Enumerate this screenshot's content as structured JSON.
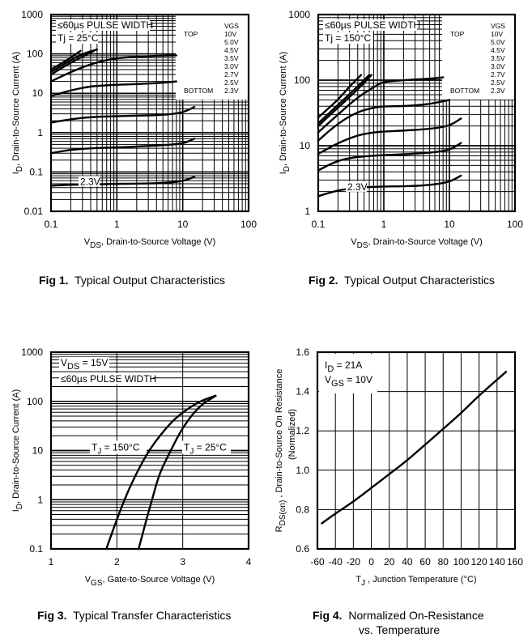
{
  "chart_data": [
    {
      "id": "fig1",
      "type": "line",
      "caption_bold": "Fig 1.",
      "caption": "Typical Output Characteristics",
      "xlabel_main": "V",
      "xlabel_sub": "DS",
      "xlabel_rest": ", Drain-to-Source Voltage (V)",
      "ylabel_main": "I",
      "ylabel_sub": "D",
      "ylabel_rest": ", Drain-to-Source Current (A)",
      "xscale": "log",
      "yscale": "log",
      "xlim": [
        0.1,
        100
      ],
      "ylim": [
        0.01,
        1000
      ],
      "xticks": [
        "0.1",
        "1",
        "10",
        "100"
      ],
      "yticks": [
        "0.01",
        "0.1",
        "1",
        "10",
        "100",
        "1000"
      ],
      "grid": true,
      "annotations": [
        "≤60µs PULSE WIDTH",
        "Tj = 25°C"
      ],
      "curve_label": "2.3V",
      "legend": {
        "placement": "top-right",
        "header": "VGS",
        "top_label": "TOP",
        "bottom_label": "BOTTOM",
        "entries": [
          "10V",
          "5.0V",
          "4.5V",
          "3.5V",
          "3.0V",
          "2.7V",
          "2.5V",
          "2.3V"
        ]
      },
      "series": [
        {
          "name": "10V",
          "x": [
            0.1,
            0.15,
            0.2,
            0.28
          ],
          "y": [
            40,
            60,
            80,
            120
          ]
        },
        {
          "name": "5.0V",
          "x": [
            0.1,
            0.15,
            0.2,
            0.3,
            0.5
          ],
          "y": [
            35,
            52,
            70,
            100,
            130
          ]
        },
        {
          "name": "4.5V",
          "x": [
            0.1,
            0.15,
            0.2,
            0.3,
            0.45
          ],
          "y": [
            30,
            45,
            60,
            85,
            120
          ]
        },
        {
          "name": "3.5V",
          "x": [
            0.1,
            0.2,
            0.4,
            0.7,
            1,
            2,
            5,
            8
          ],
          "y": [
            20,
            35,
            55,
            70,
            78,
            85,
            90,
            92
          ]
        },
        {
          "name": "3.0V",
          "x": [
            0.1,
            0.2,
            0.4,
            0.7,
            1,
            2,
            5,
            8
          ],
          "y": [
            8.5,
            12,
            15,
            16,
            16.5,
            17,
            18.5,
            20
          ]
        },
        {
          "name": "2.7V",
          "x": [
            0.1,
            0.2,
            0.4,
            1,
            2,
            5,
            10,
            15
          ],
          "y": [
            1.8,
            2.2,
            2.5,
            2.6,
            2.7,
            2.8,
            3.2,
            4.5
          ]
        },
        {
          "name": "2.5V",
          "x": [
            0.1,
            0.2,
            0.4,
            1,
            2,
            5,
            10,
            15
          ],
          "y": [
            0.3,
            0.37,
            0.4,
            0.42,
            0.44,
            0.48,
            0.52,
            0.7
          ]
        },
        {
          "name": "2.3V",
          "x": [
            0.1,
            0.2,
            0.4,
            1,
            2,
            5,
            10,
            15
          ],
          "y": [
            0.045,
            0.047,
            0.048,
            0.05,
            0.05,
            0.052,
            0.058,
            0.075
          ]
        }
      ]
    },
    {
      "id": "fig2",
      "type": "line",
      "caption_bold": "Fig 2.",
      "caption": "Typical Output Characteristics",
      "xlabel_main": "V",
      "xlabel_sub": "DS",
      "xlabel_rest": ", Drain-to-Source Voltage (V)",
      "ylabel_main": "I",
      "ylabel_sub": "D",
      "ylabel_rest": ", Drain-to-Source Current (A)",
      "xscale": "log",
      "yscale": "log",
      "xlim": [
        0.1,
        100
      ],
      "ylim": [
        1,
        1000
      ],
      "xticks": [
        "0.1",
        "1",
        "10",
        "100"
      ],
      "yticks": [
        "1",
        "10",
        "100",
        "1000"
      ],
      "grid": true,
      "annotations": [
        "≤60µs PULSE WIDTH",
        "Tj = 150°C"
      ],
      "curve_label": "2.3V",
      "legend": {
        "placement": "top-right",
        "header": "VGS",
        "top_label": "TOP",
        "bottom_label": "BOTTOM",
        "entries": [
          "10V",
          "5.0V",
          "4.5V",
          "3.5V",
          "3.0V",
          "2.7V",
          "2.5V",
          "2.3V"
        ]
      },
      "series": [
        {
          "name": "10V",
          "x": [
            0.1,
            0.2,
            0.3,
            0.45
          ],
          "y": [
            27,
            50,
            80,
            120
          ]
        },
        {
          "name": "5.0V",
          "x": [
            0.1,
            0.2,
            0.4,
            0.6
          ],
          "y": [
            22,
            42,
            80,
            120
          ]
        },
        {
          "name": "4.5V",
          "x": [
            0.1,
            0.2,
            0.4,
            0.65
          ],
          "y": [
            20,
            38,
            72,
            120
          ]
        },
        {
          "name": "3.5V",
          "x": [
            0.1,
            0.2,
            0.4,
            0.8,
            1,
            2,
            5,
            8
          ],
          "y": [
            16,
            30,
            55,
            85,
            95,
            100,
            105,
            110
          ]
        },
        {
          "name": "3.0V",
          "x": [
            0.1,
            0.2,
            0.4,
            0.7,
            1,
            2,
            5,
            10
          ],
          "y": [
            12,
            22,
            33,
            38,
            40,
            40,
            43,
            50
          ]
        },
        {
          "name": "2.7V",
          "x": [
            0.1,
            0.2,
            0.4,
            0.7,
            1,
            2,
            5,
            10,
            15
          ],
          "y": [
            7.5,
            11,
            14.5,
            16,
            16.5,
            17,
            18,
            20,
            26
          ]
        },
        {
          "name": "2.5V",
          "x": [
            0.1,
            0.2,
            0.4,
            1,
            2,
            5,
            10,
            15
          ],
          "y": [
            4.2,
            6,
            6.8,
            7.2,
            7.4,
            7.8,
            8.5,
            11
          ]
        },
        {
          "name": "2.3V",
          "x": [
            0.1,
            0.2,
            0.4,
            1,
            2,
            5,
            10,
            15
          ],
          "y": [
            1.7,
            2.1,
            2.3,
            2.4,
            2.4,
            2.5,
            2.8,
            3.5
          ]
        }
      ]
    },
    {
      "id": "fig3",
      "type": "line",
      "caption_bold": "Fig 3.",
      "caption": "Typical Transfer Characteristics",
      "xlabel_main": "V",
      "xlabel_sub": "GS",
      "xlabel_rest": ", Gate-to-Source Voltage (V)",
      "ylabel_main": "I",
      "ylabel_sub": "D",
      "ylabel_rest": ", Drain-to-Source Current  (A)",
      "xscale": "linear",
      "yscale": "log",
      "xlim": [
        1,
        4
      ],
      "ylim": [
        0.1,
        1000
      ],
      "xticks": [
        "1",
        "2",
        "3",
        "4"
      ],
      "yticks": [
        "0.1",
        "1",
        "10",
        "100",
        "1000"
      ],
      "grid": true,
      "annotations": [
        "V_DS = 15V",
        "≤60µs PULSE WIDTH"
      ],
      "series": [
        {
          "name": "T_J = 150°C",
          "x": [
            1.84,
            2.0,
            2.15,
            2.3,
            2.5,
            2.8,
            3.0,
            3.25,
            3.5
          ],
          "y": [
            0.1,
            0.4,
            1.3,
            3.5,
            11,
            35,
            60,
            100,
            130
          ]
        },
        {
          "name": "T_J = 25°C",
          "x": [
            2.33,
            2.45,
            2.55,
            2.65,
            2.8,
            3.0,
            3.25,
            3.5
          ],
          "y": [
            0.1,
            0.4,
            1.2,
            3.5,
            9,
            30,
            80,
            130
          ]
        }
      ],
      "series_labels": [
        {
          "main": "T",
          "sub": "J",
          "rest": " = 150°C"
        },
        {
          "main": "T",
          "sub": "J",
          "rest": " = 25°C"
        }
      ],
      "annotation_parts": {
        "vds_main": "V",
        "vds_sub": "DS",
        "vds_rest": " = 15V",
        "pulse": "≤60µs PULSE WIDTH"
      }
    },
    {
      "id": "fig4",
      "type": "line",
      "caption_bold": "Fig 4.",
      "caption": "Normalized On-Resistance",
      "caption_line2": "vs. Temperature",
      "xlabel_main": "T",
      "xlabel_sub": "J",
      "xlabel_rest": " , Junction Temperature (°C)",
      "ylabel_main": "R",
      "ylabel_sub": "DS(on)",
      "ylabel_rest": " , Drain-to-Source On Resistance",
      "ylabel_line2": "(Normalized)",
      "xscale": "linear",
      "yscale": "linear",
      "xlim": [
        -60,
        160
      ],
      "ylim": [
        0.6,
        1.6
      ],
      "xticks": [
        "-60",
        "-40",
        "-20",
        "0",
        "20",
        "40",
        "60",
        "80",
        "100",
        "120",
        "140",
        "160"
      ],
      "yticks": [
        "0.6",
        "0.8",
        "1.0",
        "1.2",
        "1.4",
        "1.6"
      ],
      "grid": true,
      "annotation_parts": {
        "id_main": "I",
        "id_sub": "D",
        "id_rest": " = 21A",
        "vgs_main": "V",
        "vgs_sub": "GS",
        "vgs_rest": " = 10V"
      },
      "series": [
        {
          "name": "RDS(on) normalized",
          "x": [
            -55,
            -40,
            -20,
            0,
            20,
            40,
            60,
            80,
            100,
            120,
            150
          ],
          "y": [
            0.73,
            0.78,
            0.84,
            0.91,
            0.98,
            1.05,
            1.13,
            1.21,
            1.29,
            1.38,
            1.5
          ]
        }
      ]
    }
  ]
}
